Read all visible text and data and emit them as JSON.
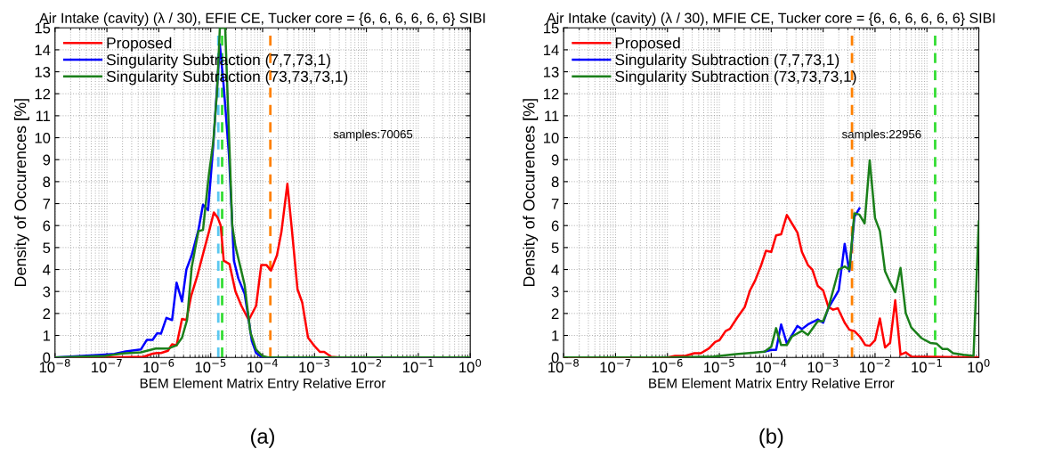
{
  "chart_data": [
    {
      "type": "line",
      "title": "Air Intake (cavity) (λ / 30), EFIE CE, Tucker core = {6, 6, 6, 6, 6, 6} SIBI",
      "xlabel": "BEM Element Matrix Entry Relative Error",
      "ylabel": "Density of Occurences [%]",
      "log": "x",
      "grid": true,
      "legend": "top left",
      "line_style": "solid",
      "marker": "none",
      "xlim": [
        1e-08,
        1
      ],
      "ylim": [
        0,
        15
      ],
      "xticks": [
        {
          "value": 1e-08,
          "label": "10$^{−8}$"
        },
        {
          "value": 1e-07,
          "label": "10$^{−7}$"
        },
        {
          "value": 1e-06,
          "label": "10$^{−6}$"
        },
        {
          "value": 1e-05,
          "label": "10$^{−5}$"
        },
        {
          "value": 0.0001,
          "label": "10$^{−4}$"
        },
        {
          "value": 0.001,
          "label": "10$^{−3}$"
        },
        {
          "value": 0.01,
          "label": "10$^{−2}$"
        },
        {
          "value": 0.1,
          "label": "10$^{−1}$"
        },
        {
          "value": 1,
          "label": "10$^{0}$"
        }
      ],
      "yticks": [
        0,
        1,
        2,
        3,
        4,
        5,
        6,
        7,
        8,
        9,
        10,
        11,
        12,
        13,
        14,
        15
      ],
      "series": [
        {
          "name": "Proposed",
          "color": "#ff0000",
          "x": [
            1e-08,
            9.3e-08,
            5.1e-07,
            7.6e-07,
            9.3e-07,
            1.1e-06,
            1.5e-06,
            1.8e-06,
            2.2e-06,
            2.8e-06,
            3.4e-06,
            4.2e-06,
            5.5e-06,
            7.1e-06,
            9.2e-06,
            1.15e-05,
            1.37e-05,
            1.56e-05,
            1.78e-05,
            2.3e-05,
            3e-05,
            3.9e-05,
            5.4e-05,
            7.5e-05,
            9.4e-05,
            0.000119,
            0.000145,
            0.000189,
            0.00023,
            0.0003,
            0.00036,
            0.00047,
            0.00058,
            0.00075,
            0.00097,
            0.00127,
            0.00154,
            0.0021,
            0.003,
            1
          ],
          "values": [
            0,
            0,
            0.03,
            0.17,
            0.2,
            0.2,
            0.3,
            0.6,
            0.55,
            1.75,
            1.7,
            2.8,
            3.7,
            4.7,
            5.7,
            6.6,
            6.35,
            6.0,
            4.4,
            4.25,
            3.0,
            2.35,
            1.7,
            2.35,
            4.2,
            4.2,
            3.95,
            4.65,
            5.7,
            7.9,
            6.0,
            3.1,
            2.5,
            0.9,
            0.55,
            0.25,
            0.25,
            0.03,
            0,
            0
          ]
        },
        {
          "name": "Singularity Subtraction (7,7,73,1)",
          "color": "#0000ff",
          "x": [
            1e-08,
            9.3e-08,
            1.4e-07,
            2.3e-07,
            4.5e-07,
            5.9e-07,
            7.6e-07,
            9.3e-07,
            1.1e-06,
            1.4e-06,
            1.8e-06,
            2.2e-06,
            2.8e-06,
            3.4e-06,
            4.3e-06,
            5.8e-06,
            7.1e-06,
            8.9e-06,
            1.12e-05,
            1.33e-05,
            1.5e-05,
            1.78e-05,
            2.25e-05,
            2.8e-05,
            3.4e-05,
            4.5e-05,
            5.4e-05,
            6.2e-05,
            7.5e-05,
            9.8e-05,
            1
          ],
          "values": [
            0,
            0.13,
            0.16,
            0.27,
            0.36,
            0.8,
            0.8,
            1.1,
            1.08,
            1.8,
            1.7,
            3.4,
            2.55,
            4.0,
            4.65,
            5.8,
            6.95,
            6.7,
            9.65,
            12.35,
            14.25,
            12.35,
            9.2,
            4.4,
            3.6,
            2.9,
            1.7,
            0.75,
            0.2,
            0,
            0
          ]
        },
        {
          "name": "Singularity Subtraction (73,73,73,1)",
          "color": "#1a7f1a",
          "x": [
            1e-08,
            9.3e-08,
            2e-07,
            4.5e-07,
            8.7e-07,
            1.5e-06,
            2.2e-06,
            2.8e-06,
            3.5e-06,
            4.3e-06,
            5.8e-06,
            7.1e-06,
            9.2e-06,
            1.12e-05,
            1.33e-05,
            1.5e-05,
            1.9e-05,
            2.6e-05,
            3e-05,
            4.5e-05,
            5.8e-05,
            7.5e-05,
            9.8e-05,
            0.000127,
            1
          ],
          "values": [
            0,
            0.07,
            0.18,
            0.23,
            0.4,
            0.4,
            0.55,
            0.9,
            1.7,
            4.1,
            5.75,
            5.8,
            8.3,
            9.8,
            12.2,
            15,
            15,
            6.0,
            5.05,
            3.3,
            1.15,
            0.35,
            0.07,
            0,
            0
          ]
        }
      ],
      "ref_lines": [
        {
          "axis": "x",
          "value": 1.4e-05,
          "color": "#5bc8f0",
          "line_style": "dashed"
        },
        {
          "axis": "x",
          "value": 1.66e-05,
          "color": "#33dd33",
          "line_style": "dashed"
        },
        {
          "axis": "x",
          "value": 0.000141,
          "color": "#ff8000",
          "line_style": "dashed"
        }
      ],
      "annotations": [
        "samples:70065",
        "(a)"
      ]
    },
    {
      "type": "line",
      "title": "Air Intake (cavity) (λ / 30), MFIE CE, Tucker core = {6, 6, 6, 6, 6, 6} SIBI",
      "xlabel": "BEM Element Matrix Entry Relative Error",
      "ylabel": "Density of Occurences [%]",
      "log": "x",
      "grid": true,
      "legend": "top left",
      "line_style": "solid",
      "marker": "none",
      "xlim": [
        1e-08,
        1
      ],
      "ylim": [
        0,
        15
      ],
      "xticks": [
        {
          "value": 1e-08,
          "label": "10$^{−8}$"
        },
        {
          "value": 1e-07,
          "label": "10$^{−7}$"
        },
        {
          "value": 1e-06,
          "label": "10$^{−6}$"
        },
        {
          "value": 1e-05,
          "label": "10$^{−5}$"
        },
        {
          "value": 0.0001,
          "label": "10$^{−4}$"
        },
        {
          "value": 0.001,
          "label": "10$^{−3}$"
        },
        {
          "value": 0.01,
          "label": "10$^{−2}$"
        },
        {
          "value": 0.1,
          "label": "10$^{−1}$"
        },
        {
          "value": 1,
          "label": "10$^{0}$"
        }
      ],
      "yticks": [
        0,
        1,
        2,
        3,
        4,
        5,
        6,
        7,
        8,
        9,
        10,
        11,
        12,
        13,
        14,
        15
      ],
      "series": [
        {
          "name": "Proposed",
          "color": "#ff0000",
          "x": [
            1e-08,
            1e-06,
            1.4e-06,
            2.2e-06,
            3.3e-06,
            4.4e-06,
            6.3e-06,
            8.3e-06,
            1e-05,
            1.32e-05,
            1.6e-05,
            2.2e-05,
            3.1e-05,
            3.9e-05,
            4.9e-05,
            6.3e-05,
            7.9e-05,
            0.0001,
            0.000124,
            0.000155,
            0.0002,
            0.00025,
            0.00032,
            0.00039,
            0.00051,
            0.00062,
            0.00079,
            0.001,
            0.00126,
            0.00156,
            0.00192,
            0.0026,
            0.0032,
            0.004,
            0.0052,
            0.0065,
            0.0079,
            0.01,
            0.0124,
            0.0156,
            0.0195,
            0.0245,
            0.031,
            0.039,
            0.05,
            1
          ],
          "values": [
            0,
            0,
            0.07,
            0.07,
            0.19,
            0.19,
            0.41,
            0.7,
            0.78,
            1.2,
            1.3,
            1.8,
            2.3,
            3.05,
            3.5,
            4.15,
            4.85,
            4.8,
            5.55,
            5.6,
            6.48,
            6.1,
            5.68,
            4.8,
            4.2,
            4.0,
            3.25,
            3.05,
            2.3,
            2.17,
            2.24,
            1.58,
            1.26,
            1.2,
            0.92,
            0.56,
            0.53,
            0.78,
            1.77,
            0.45,
            0.66,
            2.6,
            0.12,
            0.23,
            0.04,
            0
          ]
        },
        {
          "name": "Singularity Subtraction (7,7,73,1)",
          "color": "#0000ff",
          "x": [
            7.4e-05,
            0.0001,
            0.000124,
            0.000155,
            0.0002,
            0.00032,
            0.00039,
            0.00051,
            0.00079,
            0.001,
            0.00126,
            0.002,
            0.0026,
            0.0032,
            0.004,
            0.005
          ],
          "values": [
            0.26,
            0.34,
            0.34,
            1.5,
            0.63,
            1.43,
            1.29,
            1.5,
            1.73,
            1.58,
            2.24,
            3.05,
            5.17,
            3.92,
            6.4,
            6.78
          ]
        },
        {
          "name": "Singularity Subtraction (73,73,73,1)",
          "color": "#1a7f1a",
          "x": [
            1e-08,
            1e-06,
            7.7e-06,
            2.1e-05,
            4.9e-05,
            7.4e-05,
            0.0001,
            0.000124,
            0.000155,
            0.0002,
            0.00025,
            0.00039,
            0.00051,
            0.00079,
            0.001,
            0.00126,
            0.002,
            0.0026,
            0.0032,
            0.004,
            0.005,
            0.0063,
            0.0079,
            0.01,
            0.0124,
            0.0156,
            0.0195,
            0.0245,
            0.031,
            0.039,
            0.05,
            0.078,
            0.116,
            0.153,
            0.2,
            0.25,
            0.32,
            0.51,
            0.79,
            1
          ],
          "values": [
            0,
            0,
            0.04,
            0.15,
            0.22,
            0.26,
            0.48,
            1.33,
            0.56,
            0.56,
            0.95,
            1.21,
            1.02,
            1.65,
            1.65,
            2.24,
            4.0,
            4.14,
            4.0,
            6.56,
            6.5,
            6.1,
            8.97,
            6.34,
            5.75,
            3.92,
            3.41,
            2.97,
            4.07,
            2.02,
            1.36,
            0.88,
            0.66,
            0.63,
            0.38,
            0.38,
            0.19,
            0.12,
            0.07,
            6.19
          ]
        }
      ],
      "ref_lines": [
        {
          "axis": "x",
          "value": 0.0036,
          "color": "#ff8000",
          "line_style": "dashed"
        },
        {
          "axis": "x",
          "value": 0.144,
          "color": "#33dd33",
          "line_style": "dashed"
        }
      ],
      "annotations": [
        "samples:22956",
        "(b)"
      ]
    }
  ]
}
